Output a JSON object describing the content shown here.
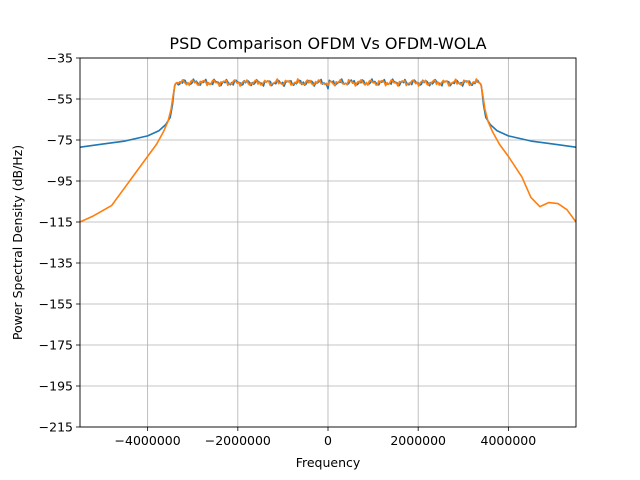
{
  "chart_data": {
    "type": "line",
    "title": "PSD Comparison OFDM Vs OFDM-WOLA",
    "xlabel": "Frequency",
    "ylabel": "Power Spectral Density (dB/Hz)",
    "xlim": [
      -5500000,
      5500000
    ],
    "ylim": [
      -215,
      -35
    ],
    "xticks": [
      -4000000,
      -2000000,
      0,
      2000000,
      4000000
    ],
    "xtick_labels": [
      "−4000000",
      "−2000000",
      "0",
      "2000000",
      "4000000"
    ],
    "yticks": [
      -215,
      -195,
      -175,
      -155,
      -135,
      -115,
      -95,
      -75,
      -55,
      -35
    ],
    "ytick_labels": [
      "−215",
      "−195",
      "−175",
      "−155",
      "−135",
      "−115",
      "−95",
      "−75",
      "−55",
      "−35"
    ],
    "grid": true,
    "legend": "none",
    "series": [
      {
        "color": "#1f77b4",
        "x": [
          -5500000,
          -5000000,
          -4500000,
          -4000000,
          -3750000,
          -3600000,
          -3500000,
          -3450000,
          -3420000,
          -3400000,
          -3380000,
          -3350000,
          3350000,
          3380000,
          3400000,
          3420000,
          3450000,
          3500000,
          3600000,
          3750000,
          4000000,
          4500000,
          5000000,
          5500000
        ],
        "y": [
          -78.5,
          -77,
          -75.5,
          -73,
          -70.5,
          -67.5,
          -64,
          -58,
          -52,
          -48.5,
          -47.5,
          -47,
          -47,
          -47.5,
          -48.5,
          -52,
          -58,
          -64,
          -67.5,
          -70.5,
          -73,
          -75.5,
          -77,
          -78.5
        ]
      },
      {
        "color": "#ff7f0e",
        "x": [
          -5500000,
          -5200000,
          -4800000,
          -4400000,
          -4000000,
          -3800000,
          -3650000,
          -3550000,
          -3480000,
          -3440000,
          -3410000,
          -3390000,
          -3370000,
          -3350000,
          3350000,
          3370000,
          3390000,
          3410000,
          3440000,
          3480000,
          3550000,
          3650000,
          3800000,
          4000000,
          4300000,
          4500000,
          4700000,
          4900000,
          5100000,
          5300000,
          5500000
        ],
        "y": [
          -115,
          -112,
          -107,
          -95,
          -83,
          -77,
          -71,
          -66,
          -60,
          -54,
          -50,
          -48,
          -47.3,
          -47,
          -47,
          -47.3,
          -48,
          -50,
          -54,
          -60,
          -66,
          -71,
          -77,
          -83,
          -93,
          -103,
          -107.5,
          -105.5,
          -106,
          -109,
          -115
        ]
      }
    ]
  }
}
